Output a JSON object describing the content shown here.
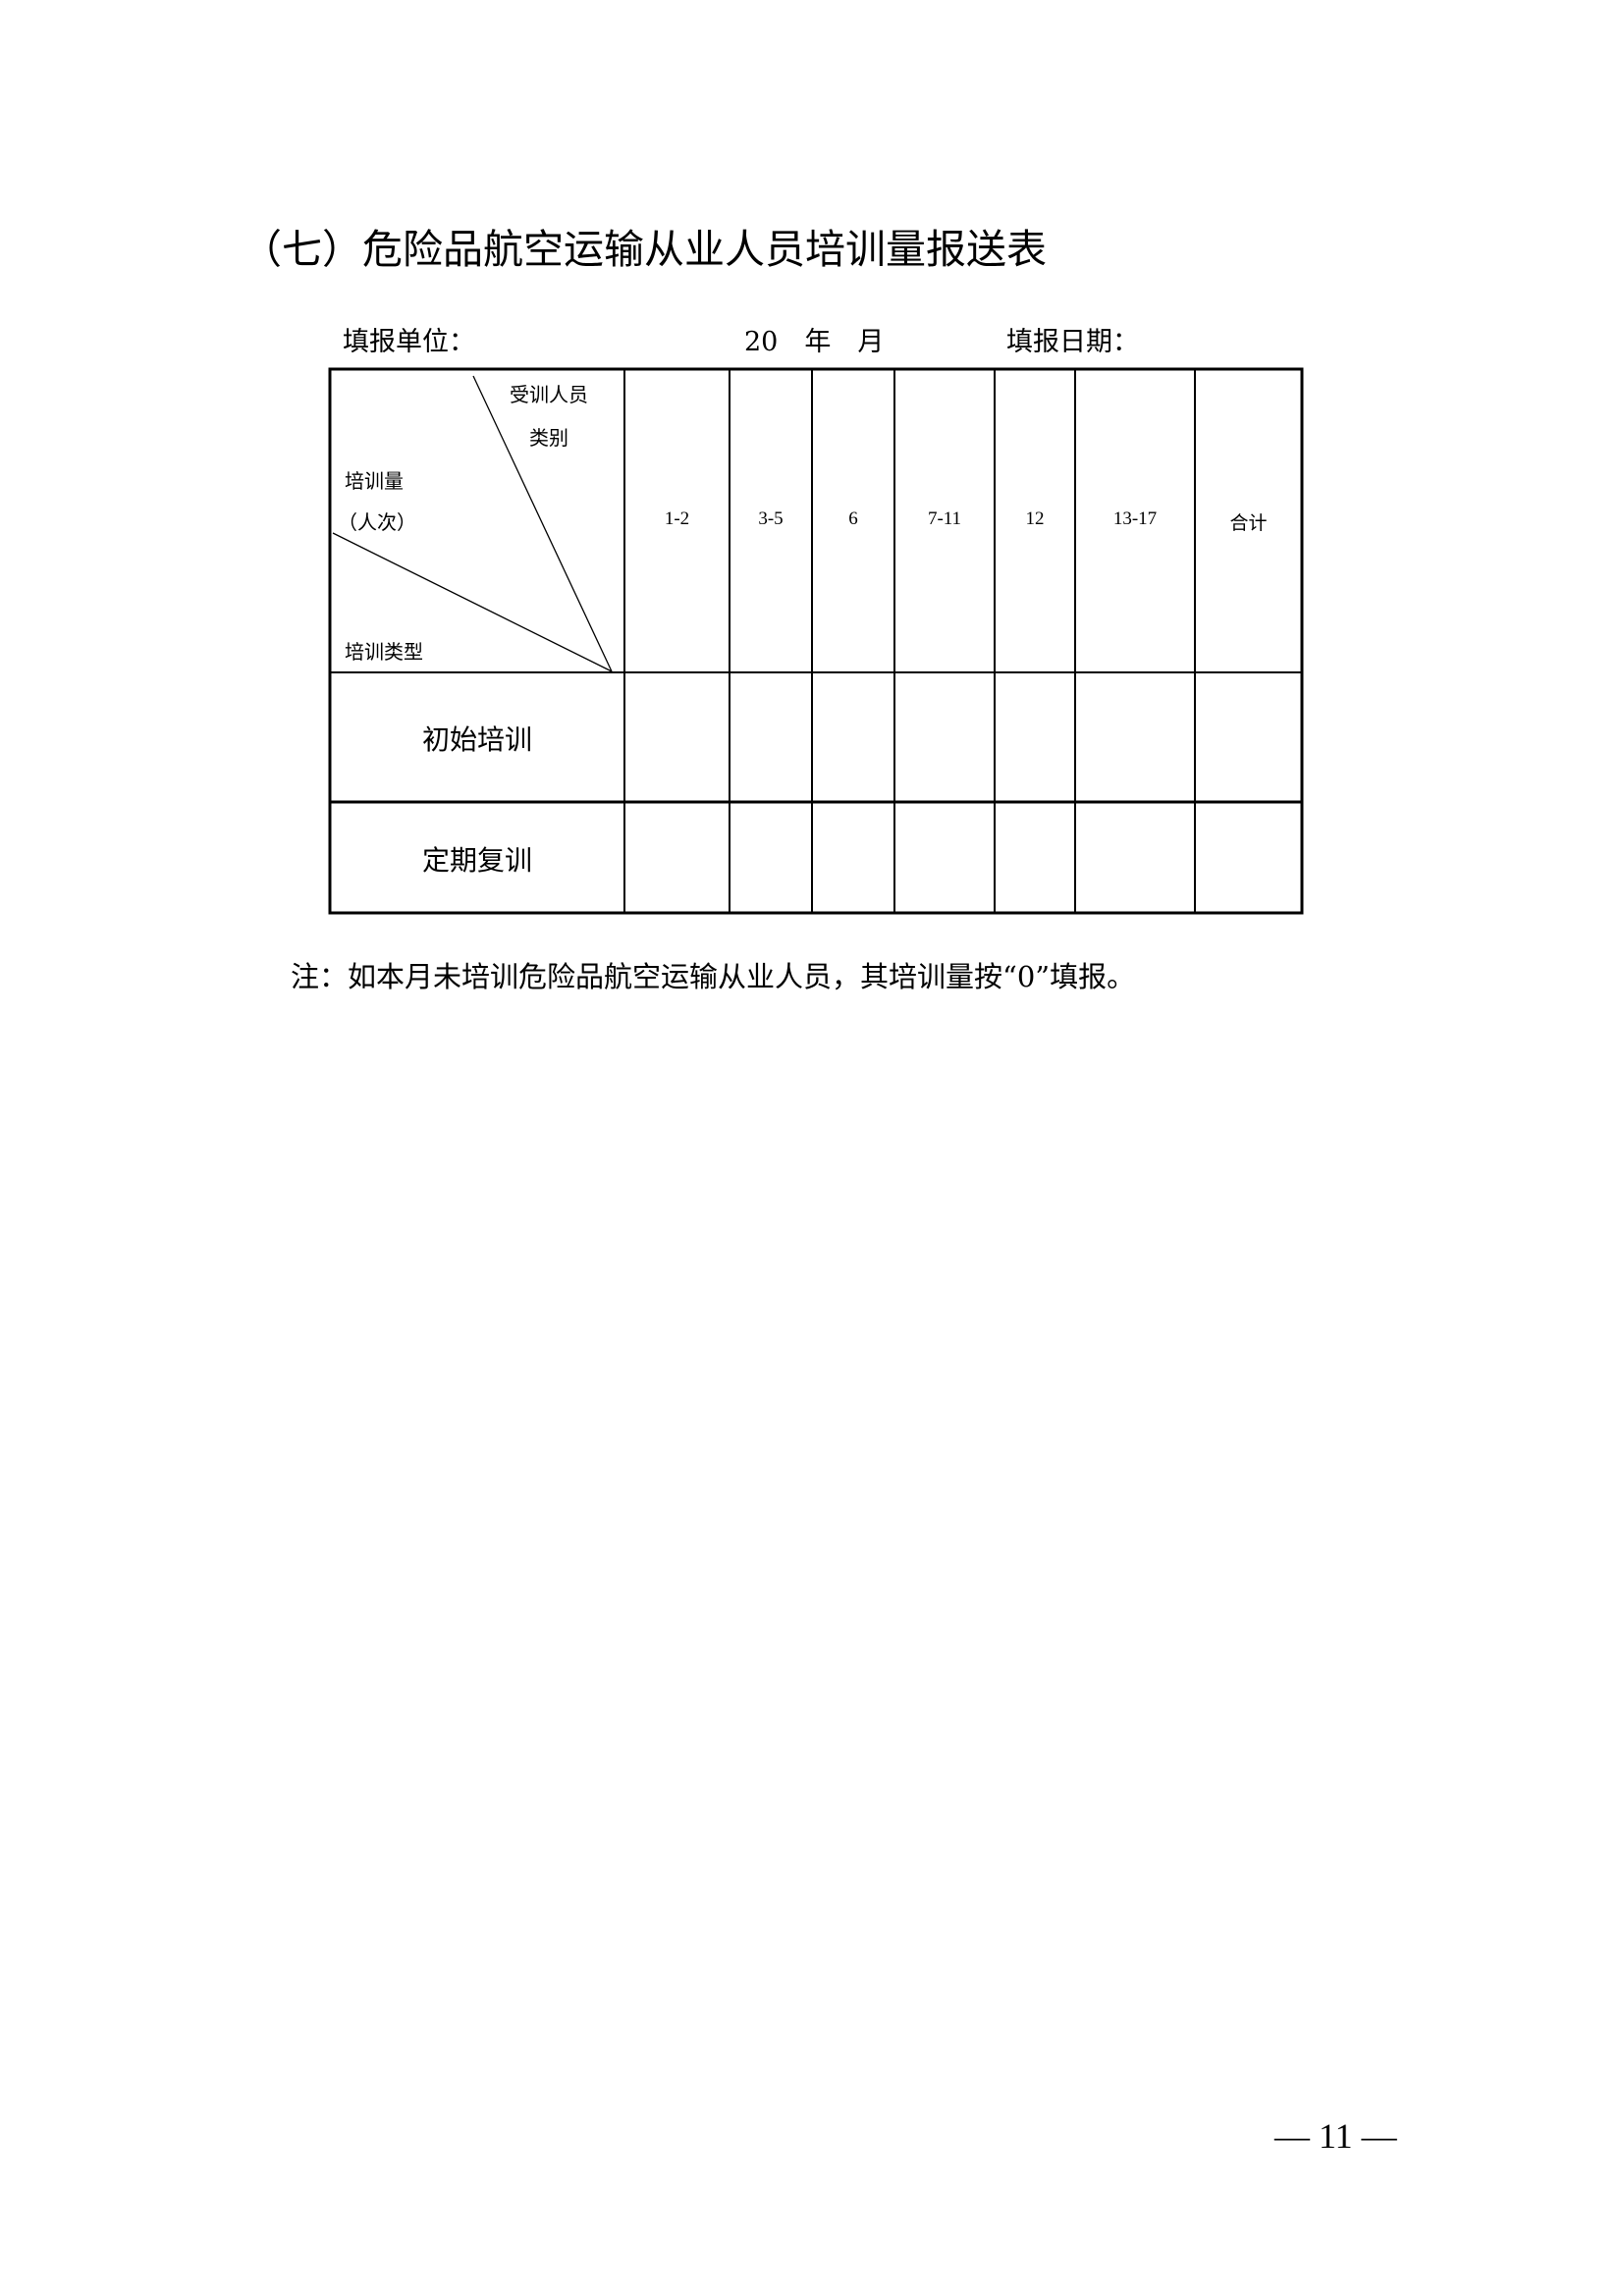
{
  "title": "（七）危险品航空运输从业人员培训量报送表",
  "info": {
    "unit_label": "填报单位：",
    "period": "20　年　月",
    "date_label": "填报日期："
  },
  "table": {
    "corner": {
      "top_right_line1": "受训人员",
      "top_right_line2": "类别",
      "middle_line1": "培训量",
      "middle_line2": "（人次）",
      "bottom_left": "培训类型"
    },
    "columns": [
      "1-2",
      "3-5",
      "6",
      "7-11",
      "12",
      "13-17",
      "合计"
    ],
    "rows": [
      {
        "label": "初始培训",
        "values": [
          "",
          "",
          "",
          "",
          "",
          "",
          ""
        ]
      },
      {
        "label": "定期复训",
        "values": [
          "",
          "",
          "",
          "",
          "",
          "",
          ""
        ]
      }
    ]
  },
  "note": "注：如本月未培训危险品航空运输从业人员，其培训量按“0”填报。",
  "page_number": "— 11 —"
}
